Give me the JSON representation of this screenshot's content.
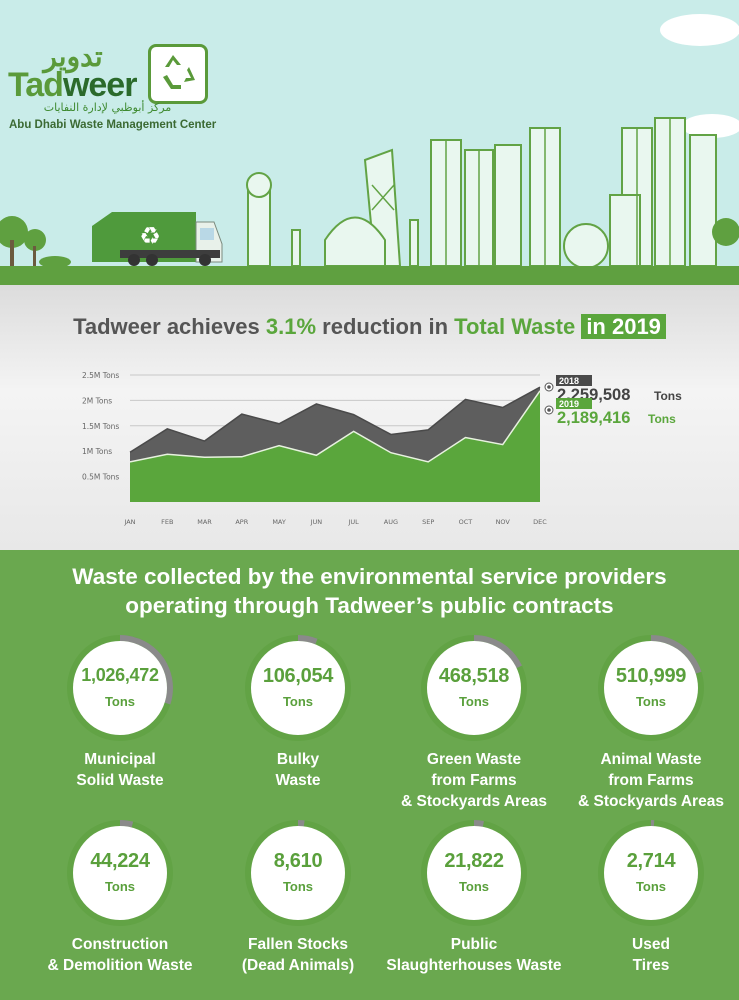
{
  "brand": {
    "name_ar": "تدوير",
    "name_en_part1": "Tad",
    "name_en_part2": "weer",
    "subtitle_ar": "مركز أبوظبي لإدارة النفايات",
    "subtitle_en": "Abu Dhabi Waste Management Center",
    "logo_icon": "recycle-icon"
  },
  "headline": {
    "part1": "Tadweer achieves ",
    "part2": "3.1%",
    "part3": " reduction in ",
    "part4": "Total Waste",
    "part5": "in 2019"
  },
  "chart_data": {
    "type": "area",
    "categories": [
      "JAN",
      "FEB",
      "MAR",
      "APR",
      "MAY",
      "JUN",
      "JUL",
      "AUG",
      "SEP",
      "OCT",
      "NOV",
      "DEC"
    ],
    "ylim": [
      0,
      2500000
    ],
    "y_ticks": [
      {
        "value": 500000,
        "label": "0.5M Tons"
      },
      {
        "value": 1000000,
        "label": "1M Tons"
      },
      {
        "value": 1500000,
        "label": "1.5M Tons"
      },
      {
        "value": 2000000,
        "label": "2M Tons"
      },
      {
        "value": 2500000,
        "label": "2.5M Tons"
      }
    ],
    "grid": true,
    "series": [
      {
        "name": "2018",
        "color": "#5e5e5e",
        "values": [
          980000,
          1440000,
          1200000,
          1730000,
          1540000,
          1930000,
          1720000,
          1330000,
          1420000,
          2020000,
          1860000,
          2259508
        ],
        "total_label": "2,259,508",
        "unit": "Tons"
      },
      {
        "name": "2019",
        "color": "#5aa63c",
        "values": [
          790000,
          940000,
          880000,
          890000,
          1110000,
          920000,
          1390000,
          970000,
          790000,
          1270000,
          1130000,
          2189416
        ],
        "total_label": "2,189,416",
        "unit": "Tons"
      }
    ]
  },
  "section_title": {
    "line1": "Waste collected by the environmental service providers",
    "line2": "operating through Tadweer’s public contracts"
  },
  "stats": [
    {
      "value": "1,026,472",
      "unit": "Tons",
      "label1": "Municipal",
      "label2": "Solid Waste",
      "label3": "",
      "share": 0.3
    },
    {
      "value": "106,054",
      "unit": "Tons",
      "label1": "Bulky",
      "label2": "Waste",
      "label3": "",
      "share": 0.06
    },
    {
      "value": "468,518",
      "unit": "Tons",
      "label1": "Green Waste",
      "label2": "from Farms",
      "label3": "& Stockyards Areas",
      "share": 0.18
    },
    {
      "value": "510,999",
      "unit": "Tons",
      "label1": "Animal Waste",
      "label2": "from Farms",
      "label3": "& Stockyards Areas",
      "share": 0.2
    },
    {
      "value": "44,224",
      "unit": "Tons",
      "label1": "Construction",
      "label2": "& Demolition Waste",
      "label3": "",
      "share": 0.04
    },
    {
      "value": "8,610",
      "unit": "Tons",
      "label1": "Fallen Stocks",
      "label2": "(Dead Animals)",
      "label3": "",
      "share": 0.02
    },
    {
      "value": "21,822",
      "unit": "Tons",
      "label1": "Public",
      "label2": "Slaughterhouses Waste",
      "label3": "",
      "share": 0.03
    },
    {
      "value": "2,714",
      "unit": "Tons",
      "label1": "Used",
      "label2": "Tires",
      "label3": "",
      "share": 0.01
    }
  ]
}
